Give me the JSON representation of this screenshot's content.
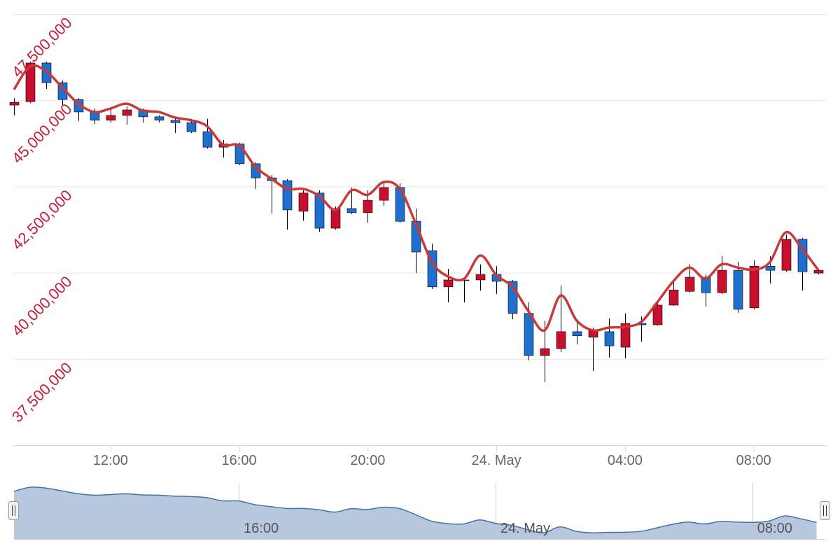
{
  "chart_data": {
    "type": "candlestick",
    "x": [
      "23 May 09:00",
      "23 May 09:30",
      "23 May 10:00",
      "23 May 10:30",
      "23 May 11:00",
      "23 May 11:30",
      "23 May 12:00",
      "23 May 12:30",
      "23 May 13:00",
      "23 May 13:30",
      "23 May 14:00",
      "23 May 14:30",
      "23 May 15:00",
      "23 May 15:30",
      "23 May 16:00",
      "23 May 16:30",
      "23 May 17:00",
      "23 May 17:30",
      "23 May 18:00",
      "23 May 18:30",
      "23 May 19:00",
      "23 May 19:30",
      "23 May 20:00",
      "23 May 20:30",
      "23 May 21:00",
      "23 May 21:30",
      "23 May 22:00",
      "23 May 22:30",
      "23 May 23:00",
      "23 May 23:30",
      "24 May 00:00",
      "24 May 00:30",
      "24 May 01:00",
      "24 May 01:30",
      "24 May 02:00",
      "24 May 02:30",
      "24 May 03:00",
      "24 May 03:30",
      "24 May 04:00",
      "24 May 04:30",
      "24 May 05:00",
      "24 May 05:30",
      "24 May 06:00",
      "24 May 06:30",
      "24 May 07:00",
      "24 May 07:30",
      "24 May 08:00",
      "24 May 08:30",
      "24 May 09:00",
      "24 May 09:30",
      "24 May 10:00"
    ],
    "open": [
      44860000,
      44960000,
      46080000,
      45510000,
      45020000,
      44660000,
      44420000,
      44560000,
      44720000,
      44520000,
      44420000,
      44350000,
      44090000,
      43640000,
      43730000,
      43160000,
      42750000,
      42670000,
      41780000,
      42310000,
      41290000,
      41860000,
      41740000,
      42100000,
      42470000,
      41490000,
      40640000,
      39590000,
      39790000,
      39790000,
      39950000,
      39750000,
      38820000,
      37600000,
      37800000,
      38290000,
      38130000,
      38290000,
      37840000,
      38530000,
      38490000,
      39060000,
      39460000,
      39870000,
      39420000,
      40070000,
      38980000,
      40190000,
      40070000,
      40970000,
      39990000
    ],
    "high": [
      45060000,
      46120000,
      46120000,
      45570000,
      45060000,
      44760000,
      44760000,
      44820000,
      44760000,
      44560000,
      44500000,
      44460000,
      44460000,
      43850000,
      43770000,
      43200000,
      42830000,
      42710000,
      42390000,
      42390000,
      41920000,
      42470000,
      42390000,
      42670000,
      42590000,
      41860000,
      40840000,
      40110000,
      39830000,
      40240000,
      40190000,
      39790000,
      39140000,
      38610000,
      39630000,
      38610000,
      38410000,
      38670000,
      38820000,
      38730000,
      39140000,
      39750000,
      40240000,
      39950000,
      40480000,
      40320000,
      40360000,
      40480000,
      41110000,
      41010000,
      40110000
    ],
    "low": [
      44560000,
      44920000,
      45330000,
      44860000,
      44400000,
      44310000,
      44350000,
      44290000,
      44350000,
      44350000,
      44050000,
      44050000,
      43600000,
      43340000,
      43120000,
      42430000,
      41720000,
      41250000,
      41510000,
      41190000,
      41250000,
      41700000,
      41450000,
      41940000,
      41450000,
      39990000,
      39530000,
      39140000,
      39140000,
      39480000,
      39380000,
      38650000,
      37460000,
      36830000,
      37700000,
      37920000,
      37150000,
      37540000,
      37520000,
      38000000,
      38470000,
      39040000,
      39420000,
      39020000,
      39380000,
      38840000,
      38940000,
      39690000,
      40030000,
      39480000,
      39950000
    ],
    "close": [
      44940000,
      46080000,
      45510000,
      45020000,
      44660000,
      44420000,
      44560000,
      44720000,
      44520000,
      44420000,
      44350000,
      44090000,
      43640000,
      43730000,
      43160000,
      42750000,
      42670000,
      41820000,
      42310000,
      41290000,
      41860000,
      41740000,
      42100000,
      42470000,
      41490000,
      40600000,
      39590000,
      39790000,
      39770000,
      39950000,
      39750000,
      38820000,
      37600000,
      37800000,
      38290000,
      38170000,
      38330000,
      37880000,
      38530000,
      38490000,
      39060000,
      39500000,
      39870000,
      39420000,
      40070000,
      38940000,
      40190000,
      40070000,
      40970000,
      40030000,
      40070000
    ],
    "up_color": "#c8102e",
    "down_color": "#1f6fcf",
    "line": {
      "type": "spline",
      "color": "#c9393a",
      "values": [
        45310000,
        45980000,
        45840000,
        45370000,
        44900000,
        44660000,
        44760000,
        44900000,
        44700000,
        44660000,
        44500000,
        44420000,
        44250000,
        43710000,
        43690000,
        43080000,
        42730000,
        42430000,
        42430000,
        42220000,
        41820000,
        42390000,
        42260000,
        42630000,
        42430000,
        41410000,
        40300000,
        39890000,
        39830000,
        40500000,
        39930000,
        39590000,
        38880000,
        38330000,
        39340000,
        38610000,
        38330000,
        38410000,
        38430000,
        38570000,
        39140000,
        39750000,
        40150000,
        39830000,
        40240000,
        40150000,
        40090000,
        40300000,
        41170000,
        40700000,
        40090000
      ]
    },
    "xlim": [
      "23 May 09:00",
      "24 May 10:15"
    ],
    "xticks": [
      {
        "value": "23 May 12:00",
        "label": "12:00"
      },
      {
        "value": "23 May 16:00",
        "label": "16:00"
      },
      {
        "value": "23 May 20:00",
        "label": "20:00"
      },
      {
        "value": "24 May 00:00",
        "label": "24. May"
      },
      {
        "value": "24 May 04:00",
        "label": "04:00"
      },
      {
        "value": "24 May 08:00",
        "label": "08:00"
      }
    ],
    "ylim": [
      35000000,
      47500000
    ],
    "yticks": [
      {
        "value": 37500000,
        "label": "37,500,000"
      },
      {
        "value": 40000000,
        "label": "40,000,000"
      },
      {
        "value": 42500000,
        "label": "42,500,000"
      },
      {
        "value": 45000000,
        "label": "45,000,000"
      },
      {
        "value": 47500000,
        "label": "47,500,000"
      }
    ],
    "grid": true,
    "navigator": {
      "color": "#b6c7de",
      "line_color": "#4572a7",
      "ylim": [
        37300000,
        46700000
      ],
      "xticks": [
        {
          "value": "23 May 16:00",
          "label": "16:00"
        },
        {
          "value": "24 May 00:00",
          "label": "24. May"
        },
        {
          "value": "24 May 08:00",
          "label": "08:00"
        }
      ]
    }
  }
}
